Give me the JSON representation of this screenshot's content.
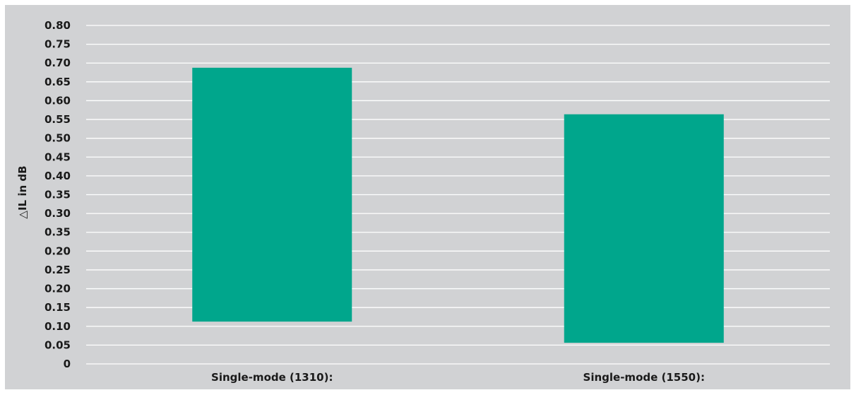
{
  "chart_data": {
    "type": "bar",
    "title": "",
    "xlabel": "",
    "ylabel": "△IL in dB",
    "ylim": [
      0,
      0.8
    ],
    "tick_labels": [
      "0",
      "0.05",
      "0.10",
      "0.15",
      "0.20",
      "0.25",
      "0.20",
      "0.35",
      "0.30",
      "0.35",
      "0.40",
      "0.45",
      "0.50",
      "0.55",
      "0.60",
      "0.65",
      "0.70",
      "0.75",
      "0.80"
    ],
    "categories": [
      "Single-mode (1310):",
      "Single-mode (1550):"
    ],
    "bars": [
      {
        "category": "Single-mode (1310):",
        "low": 0.1,
        "high": 0.7
      },
      {
        "category": "Single-mode (1550):",
        "low": 0.05,
        "high": 0.59
      }
    ],
    "grid": true,
    "legend": "none",
    "colors": {
      "bar": "#00a68c",
      "background": "#d1d2d4",
      "gridline": "#ffffff",
      "text": "#1a1a1a"
    }
  }
}
